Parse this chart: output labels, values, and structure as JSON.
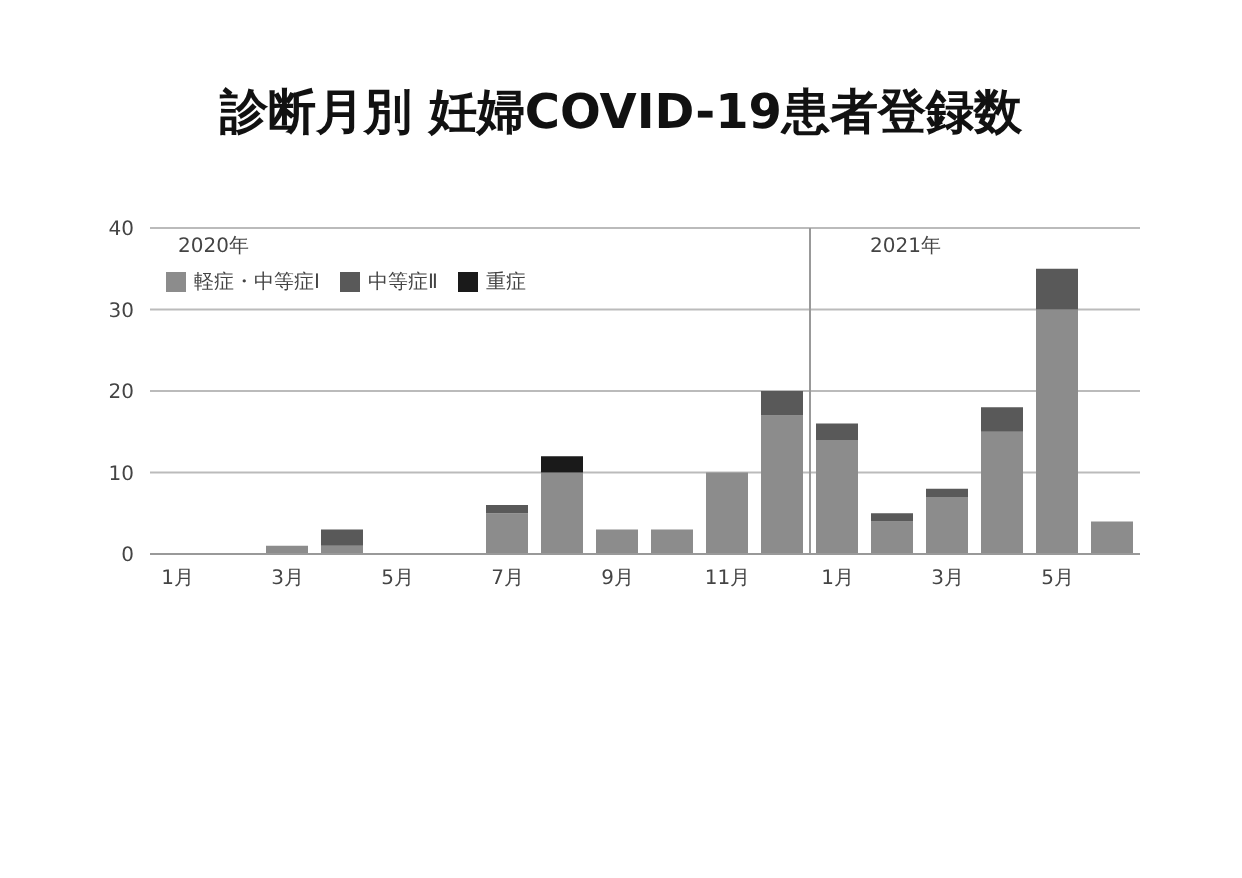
{
  "chart_data": {
    "type": "bar",
    "title": "診断月別 妊婦COVID-19患者登録数",
    "stacked": true,
    "categories": [
      "1月",
      null,
      "3月",
      null,
      "5月",
      null,
      "7月",
      null,
      "9月",
      null,
      "11月",
      null,
      "1月",
      null,
      "3月",
      null,
      "5月",
      null
    ],
    "series": [
      {
        "name": "軽症・中等症Ⅰ",
        "color": "#8c8c8c",
        "values": [
          0,
          0,
          1,
          1,
          0,
          0,
          5,
          10,
          3,
          3,
          10,
          17,
          14,
          4,
          7,
          15,
          30,
          4
        ]
      },
      {
        "name": "中等症Ⅱ",
        "color": "#595959",
        "values": [
          0,
          0,
          0,
          2,
          0,
          0,
          1,
          0,
          0,
          0,
          0,
          3,
          2,
          1,
          1,
          3,
          5,
          0
        ]
      },
      {
        "name": "重症",
        "color": "#1a1a1a",
        "values": [
          0,
          0,
          0,
          0,
          0,
          0,
          0,
          2,
          0,
          0,
          0,
          0,
          0,
          0,
          0,
          0,
          0,
          0
        ]
      }
    ],
    "ylim": [
      0,
      40
    ],
    "yticks": [
      0,
      10,
      20,
      30,
      40
    ],
    "grid": "y",
    "legend": "top left",
    "annotations": [
      "2020年",
      "2021年"
    ]
  }
}
